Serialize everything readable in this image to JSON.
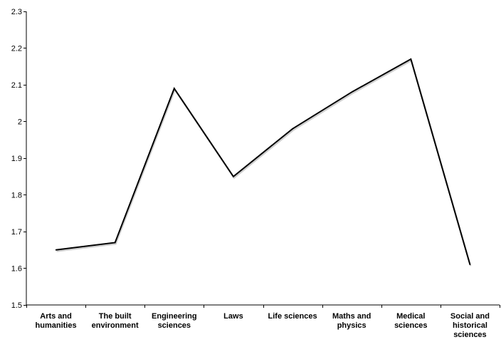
{
  "chart_data": {
    "type": "line",
    "title": "",
    "xlabel": "",
    "ylabel": "",
    "categories": [
      [
        "Arts and",
        "humanities"
      ],
      [
        "The built",
        "environment"
      ],
      [
        "Engineering",
        "sciences"
      ],
      [
        "Laws"
      ],
      [
        "Life sciences"
      ],
      [
        "Maths and",
        "physics"
      ],
      [
        "Medical",
        "sciences"
      ],
      [
        "Social and",
        "historical",
        "sciences"
      ]
    ],
    "series": [
      {
        "values": [
          1.65,
          1.67,
          2.09,
          1.85,
          1.98,
          2.08,
          2.17,
          1.61
        ],
        "color": "#000000"
      }
    ],
    "ylim": [
      1.5,
      2.3
    ],
    "yticks": [
      "1.5",
      "1.6",
      "1.7",
      "1.8",
      "1.9",
      "2",
      "2.1",
      "2.2",
      "2.3"
    ],
    "grid": false,
    "legend": "none"
  }
}
